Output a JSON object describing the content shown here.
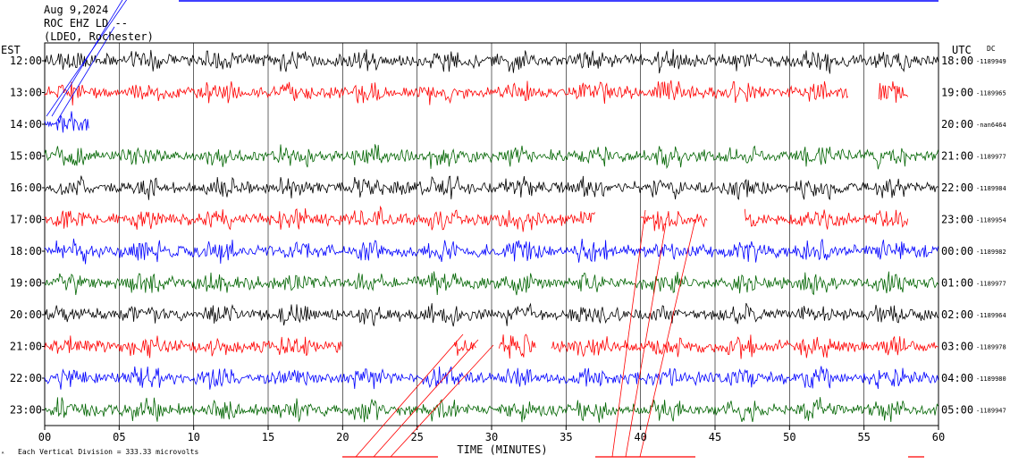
{
  "header": {
    "line1": "Aug 9,2024",
    "line2": "ROC EHZ LD --",
    "line3": "(LDEO, Rochester)"
  },
  "left_zone_label": "EST",
  "right_zone_label": "UTC",
  "dc_label": "DC",
  "footer": {
    "scale_note": "Each Vertical Division =  333.33 microvolts",
    "corner_mark": "ᴬ"
  },
  "colors": {
    "black": "#000000",
    "red": "#ff0000",
    "blue": "#0000ff",
    "green": "#006400",
    "grid": "#000000"
  },
  "chart_data": {
    "type": "line",
    "title": "",
    "xlabel": "TIME (MINUTES)",
    "ylabel": "",
    "xlim": [
      0,
      60
    ],
    "x_ticks": [
      "00",
      "05",
      "10",
      "15",
      "20",
      "25",
      "30",
      "35",
      "40",
      "45",
      "50",
      "55",
      "60"
    ],
    "grid": "vertical every 5 minutes",
    "rows": [
      {
        "left": "12:00",
        "right": "18:00",
        "dc": "-1189949",
        "color": "black",
        "segments": [
          [
            0,
            60
          ]
        ]
      },
      {
        "left": "13:00",
        "right": "19:00",
        "dc": "-1189965",
        "color": "red",
        "segments": [
          [
            0,
            54
          ],
          [
            56,
            58
          ]
        ]
      },
      {
        "left": "14:00",
        "right": "20:00",
        "dc": "-nan6464",
        "color": "blue",
        "segments": [
          [
            0,
            3
          ]
        ]
      },
      {
        "left": "15:00",
        "right": "21:00",
        "dc": "-1189977",
        "color": "green",
        "segments": [
          [
            0,
            60
          ]
        ]
      },
      {
        "left": "16:00",
        "right": "22:00",
        "dc": "-1189984",
        "color": "black",
        "segments": [
          [
            0,
            60
          ]
        ]
      },
      {
        "left": "17:00",
        "right": "23:00",
        "dc": "-1189954",
        "color": "red",
        "segments": [
          [
            0,
            37
          ],
          [
            40,
            44.5
          ],
          [
            47,
            58
          ]
        ]
      },
      {
        "left": "18:00",
        "right": "00:00",
        "dc": "-1189982",
        "color": "blue",
        "segments": [
          [
            0,
            60
          ]
        ]
      },
      {
        "left": "19:00",
        "right": "01:00",
        "dc": "-1189977",
        "color": "green",
        "segments": [
          [
            0,
            60
          ]
        ]
      },
      {
        "left": "20:00",
        "right": "02:00",
        "dc": "-1189964",
        "color": "black",
        "segments": [
          [
            0,
            60
          ]
        ]
      },
      {
        "left": "21:00",
        "right": "03:00",
        "dc": "-1189978",
        "color": "red",
        "segments": [
          [
            0,
            20
          ],
          [
            27.5,
            29
          ],
          [
            30.5,
            33
          ],
          [
            34,
            60
          ]
        ]
      },
      {
        "left": "22:00",
        "right": "04:00",
        "dc": "-1189980",
        "color": "blue",
        "segments": [
          [
            0,
            60
          ]
        ]
      },
      {
        "left": "23:00",
        "right": "05:00",
        "dc": "-1189947",
        "color": "green",
        "segments": [
          [
            0,
            60
          ]
        ]
      }
    ]
  }
}
